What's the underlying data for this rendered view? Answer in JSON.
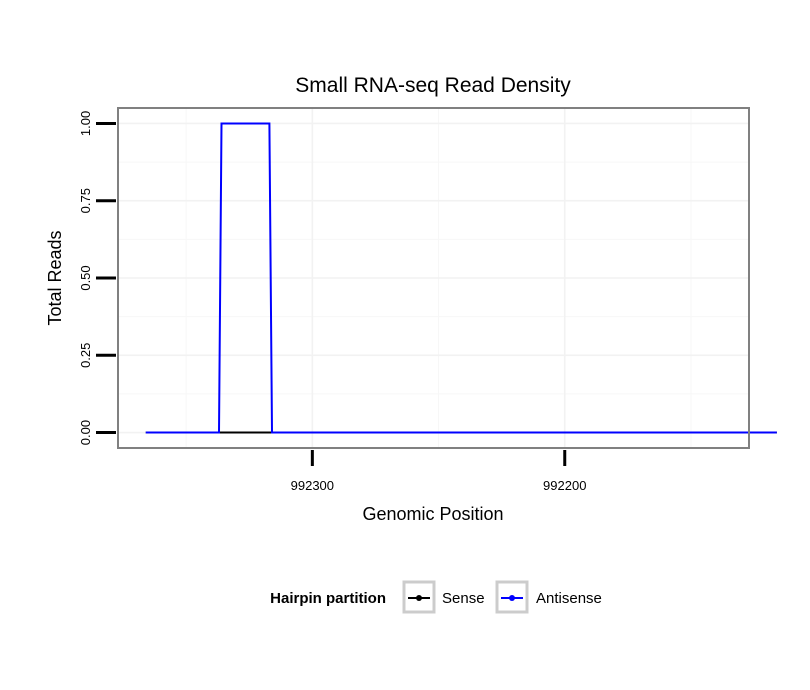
{
  "chart_data": {
    "type": "line",
    "title": "Small RNA-seq Read Density",
    "xlabel": "Genomic Position",
    "ylabel": "Total Reads",
    "xlim": [
      992377,
      992127
    ],
    "ylim": [
      -0.05,
      1.05
    ],
    "x_reversed": true,
    "grid": true,
    "x_ticks": [
      992300,
      992200
    ],
    "x_tick_labels": [
      "992300",
      "992200"
    ],
    "y_ticks": [
      0,
      0.25,
      0.5,
      0.75,
      1.0
    ],
    "y_tick_labels": [
      "0.00",
      "0.25",
      "0.50",
      "0.75",
      "1.00"
    ],
    "series": [
      {
        "name": "Sense",
        "color": "#000000",
        "x": [
          992366,
          992116
        ],
        "y": [
          0,
          0
        ]
      },
      {
        "name": "Antisense",
        "color": "#0000ff",
        "x": [
          992366,
          992337,
          992336,
          992317,
          992316,
          992116
        ],
        "y": [
          0,
          0,
          1,
          1,
          0,
          0
        ]
      }
    ],
    "legend": {
      "title": "Hairpin partition",
      "position": "bottom",
      "entries": [
        "Sense",
        "Antisense"
      ]
    }
  }
}
